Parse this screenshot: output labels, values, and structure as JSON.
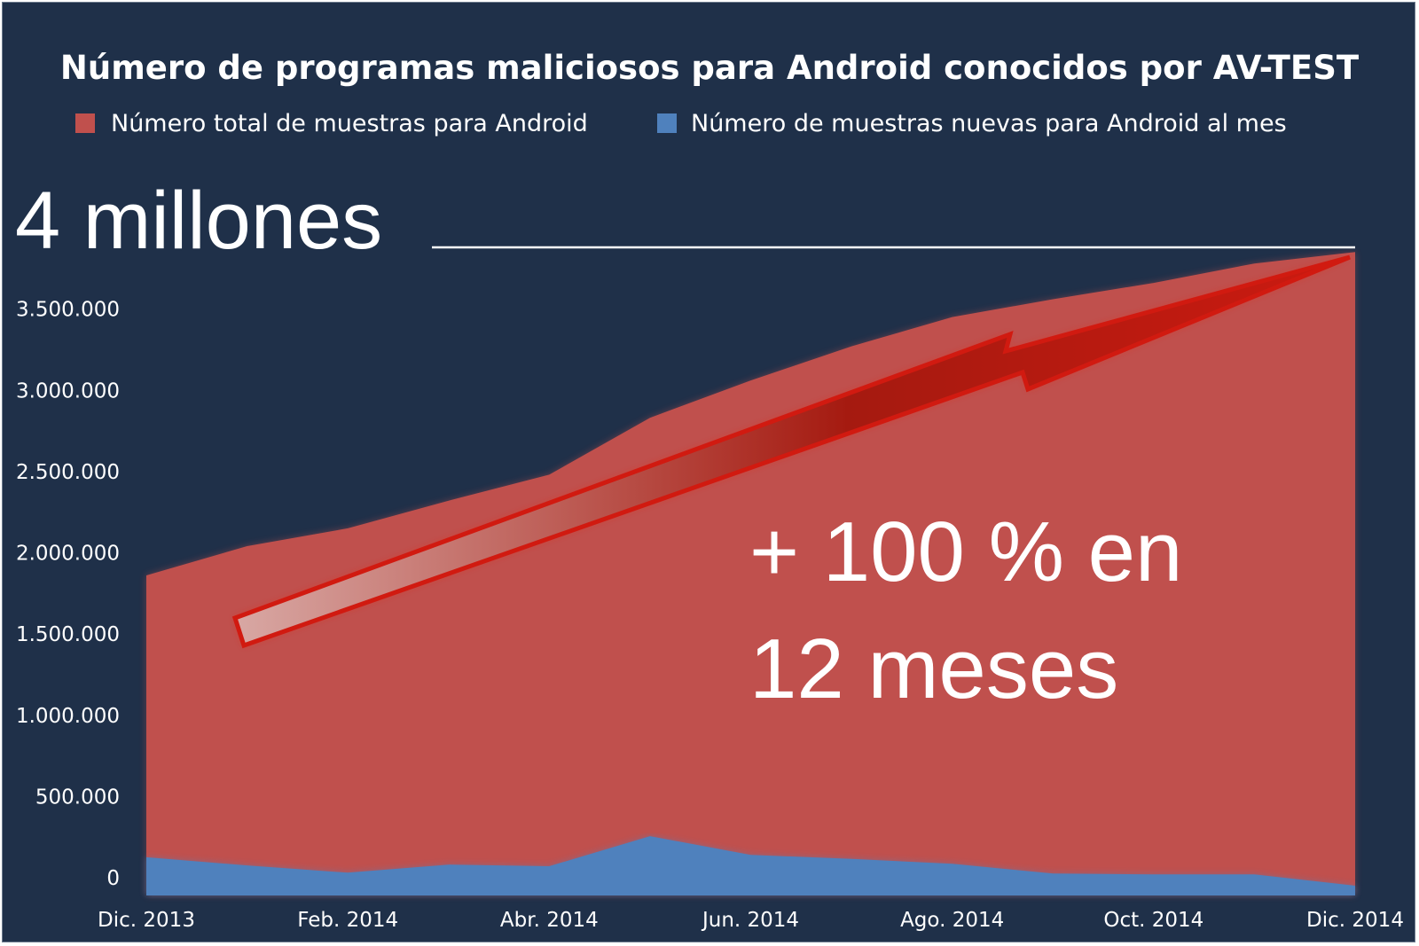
{
  "chart_data": {
    "type": "area",
    "title": "Número de programas maliciosos para Android conocidos por AV-TEST",
    "xlabel": "",
    "ylabel": "",
    "ylim": [
      0,
      4000000
    ],
    "x_tick_labels": [
      "Dic. 2013",
      "Feb. 2014",
      "Abr. 2014",
      "Jun. 2014",
      "Ago. 2014",
      "Oct. 2014",
      "Dic. 2014"
    ],
    "y_tick_labels": [
      "0",
      "500.000",
      "1.000.000",
      "1.500.000",
      "2.000.000",
      "2.500.000",
      "3.000.000",
      "3.500.000"
    ],
    "y_tick_values": [
      0,
      500000,
      1000000,
      1500000,
      2000000,
      2500000,
      3000000,
      3500000
    ],
    "months": 13,
    "series": [
      {
        "name": "Número total de muestras para Android",
        "color": "#c0504d",
        "values": [
          1970000,
          2150000,
          2260000,
          2430000,
          2590000,
          2940000,
          3170000,
          3380000,
          3560000,
          3670000,
          3770000,
          3890000,
          3960000
        ]
      },
      {
        "name": "Número de muestras nuevas para Android al mes",
        "color": "#4f81bd",
        "values": [
          235000,
          185000,
          140000,
          190000,
          180000,
          365000,
          250000,
          225000,
          195000,
          135000,
          130000,
          130000,
          60000
        ]
      }
    ],
    "legend_position": "top",
    "grid": false,
    "annotations": {
      "reference_label": "4 millones",
      "reference_value": 4000000,
      "growth_text_line1": "+ 100 % en",
      "growth_text_line2": "12 meses"
    }
  },
  "colors": {
    "background": "#1f3049",
    "total": "#c0504d",
    "new": "#4f81bd",
    "arrow": "#c8180c",
    "text": "#ffffff"
  }
}
